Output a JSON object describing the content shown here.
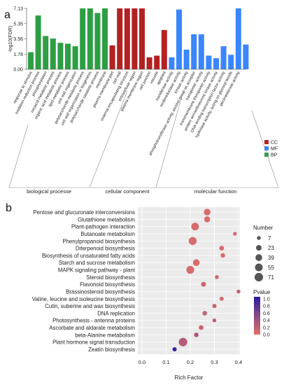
{
  "panels": {
    "a": "a",
    "b": "b"
  },
  "chart_data": [
    {
      "type": "bar",
      "panel": "a",
      "ylabel": "-log10(FDR)",
      "yticks": [
        "0.00",
        "1.78",
        "3.56",
        "5.35",
        "7.13"
      ],
      "ylim": [
        0,
        7.13
      ],
      "legend": [
        {
          "name": "CC",
          "color": "#b22222"
        },
        {
          "name": "MF",
          "color": "#3a86ff"
        },
        {
          "name": "BP",
          "color": "#2e9e44"
        }
      ],
      "group_labels": [
        "biological processe",
        "cellular component",
        "molecular function"
      ],
      "bars": [
        {
          "label": "response to stimulus",
          "value": 2.0,
          "cat": "BP"
        },
        {
          "label": "oxidation-reduction process",
          "value": 6.3,
          "cat": "BP"
        },
        {
          "label": "phosphorylation",
          "value": 3.9,
          "cat": "BP"
        },
        {
          "label": "oxoacid metabolic process",
          "value": 3.6,
          "cat": "BP"
        },
        {
          "label": "organic acid metabolic process",
          "value": 3.1,
          "cat": "BP"
        },
        {
          "label": "lipid metabolic process",
          "value": 3.0,
          "cat": "BP"
        },
        {
          "label": "cell wall organization",
          "value": 2.7,
          "cat": "BP"
        },
        {
          "label": "polysaccharide metabolic process",
          "value": 7.13,
          "cat": "BP"
        },
        {
          "label": "cell wall organization or biogenesis",
          "value": 7.13,
          "cat": "BP"
        },
        {
          "label": "polysaccharide catabolic process",
          "value": 6.6,
          "cat": "BP"
        },
        {
          "label": "membrane",
          "value": 7.13,
          "cat": "BP"
        },
        {
          "label": "plasma membrane part",
          "value": 2.8,
          "cat": "CC"
        },
        {
          "label": "cell wall",
          "value": 7.13,
          "cat": "CC"
        },
        {
          "label": "external encapsulating structure",
          "value": 7.13,
          "cat": "CC"
        },
        {
          "label": "extracellular region",
          "value": 7.13,
          "cat": "CC"
        },
        {
          "label": "plasma membrane region",
          "value": 7.13,
          "cat": "CC"
        },
        {
          "label": "cell junction",
          "value": 1.4,
          "cat": "CC"
        },
        {
          "label": "vacuole",
          "value": 1.6,
          "cat": "CC"
        },
        {
          "label": "apoplast",
          "value": 4.6,
          "cat": "CC"
        },
        {
          "label": "transferase activity",
          "value": 1.4,
          "cat": "MF"
        },
        {
          "label": "oxidoreductase activity",
          "value": 7.0,
          "cat": "MF"
        },
        {
          "label": "kinase activity",
          "value": 2.3,
          "cat": "MF"
        },
        {
          "label": "phosphotransferase activity, alcohol group as acceptor",
          "value": 4.1,
          "cat": "MF"
        },
        {
          "label": "transporter activity",
          "value": 4.1,
          "cat": "MF"
        },
        {
          "label": "transmembrane transporter activity",
          "value": 1.6,
          "cat": "MF"
        },
        {
          "label": "protein serine/threonine kinase activity",
          "value": 1.3,
          "cat": "MF"
        },
        {
          "label": "DNA-binding transcription factor activity",
          "value": 2.7,
          "cat": "MF"
        },
        {
          "label": "hydrolase activity, acting on glycosyl bonds",
          "value": 1.7,
          "cat": "MF"
        },
        {
          "label": "pectinesterase activity",
          "value": 7.13,
          "cat": "MF"
        },
        {
          "label": "",
          "value": 2.9,
          "cat": "MF"
        }
      ]
    },
    {
      "type": "scatter",
      "panel": "b",
      "xlabel": "Rich Factor",
      "xticks": [
        "0.0",
        "0.1",
        "0.2",
        "0.3",
        "0.4"
      ],
      "xlim": [
        0,
        0.4
      ],
      "size_legend_title": "Number",
      "size_legend": [
        7,
        23,
        39,
        55,
        71
      ],
      "color_legend_title": "Pvalue",
      "color_legend_ticks": [
        "1.0",
        "0.8",
        "0.6",
        "0.4",
        "0.2",
        "0.0"
      ],
      "pathways": [
        {
          "name": "Pentose and glucuronate interconversions",
          "x": 0.27,
          "number": 37,
          "p": 0.05
        },
        {
          "name": "Glutathione metabolism",
          "x": 0.27,
          "number": 28,
          "p": 0.05
        },
        {
          "name": "Plant-pathogen interaction",
          "x": 0.22,
          "number": 55,
          "p": 0.05
        },
        {
          "name": "Butanoate metabolism",
          "x": 0.385,
          "number": 7,
          "p": 0.08
        },
        {
          "name": "Phenylpropanoid biosynthesis",
          "x": 0.21,
          "number": 60,
          "p": 0.05
        },
        {
          "name": "Diterpenoid biosynthesis",
          "x": 0.33,
          "number": 15,
          "p": 0.05
        },
        {
          "name": "Biosynthesis of unsaturated fatty acids",
          "x": 0.335,
          "number": 12,
          "p": 0.06
        },
        {
          "name": "Starch and sucrose metabolism",
          "x": 0.225,
          "number": 38,
          "p": 0.05
        },
        {
          "name": "MAPK signaling pathway - plant",
          "x": 0.2,
          "number": 58,
          "p": 0.06
        },
        {
          "name": "Steroid biosynthesis",
          "x": 0.31,
          "number": 8,
          "p": 0.1
        },
        {
          "name": "Flavonoid biosynthesis",
          "x": 0.255,
          "number": 16,
          "p": 0.12
        },
        {
          "name": "Brassinosteroid biosynthesis",
          "x": 0.4,
          "number": 7,
          "p": 0.2
        },
        {
          "name": "Valine, leucine and isoleucine biosynthesis",
          "x": 0.33,
          "number": 9,
          "p": 0.1
        },
        {
          "name": "Cutin, suberine and wax biosynthesis",
          "x": 0.3,
          "number": 10,
          "p": 0.15
        },
        {
          "name": "DNA replication",
          "x": 0.26,
          "number": 13,
          "p": 0.15
        },
        {
          "name": "Photosynthesis - antenna proteins",
          "x": 0.3,
          "number": 7,
          "p": 0.22
        },
        {
          "name": "Ascorbate and aldarate metabolism",
          "x": 0.245,
          "number": 14,
          "p": 0.15
        },
        {
          "name": "beta-Alanine metabolism",
          "x": 0.225,
          "number": 13,
          "p": 0.3
        },
        {
          "name": "Plant hormone signal transduction",
          "x": 0.17,
          "number": 71,
          "p": 0.25
        },
        {
          "name": "Zeatin biosynthesis",
          "x": 0.135,
          "number": 10,
          "p": 0.95
        }
      ]
    }
  ]
}
